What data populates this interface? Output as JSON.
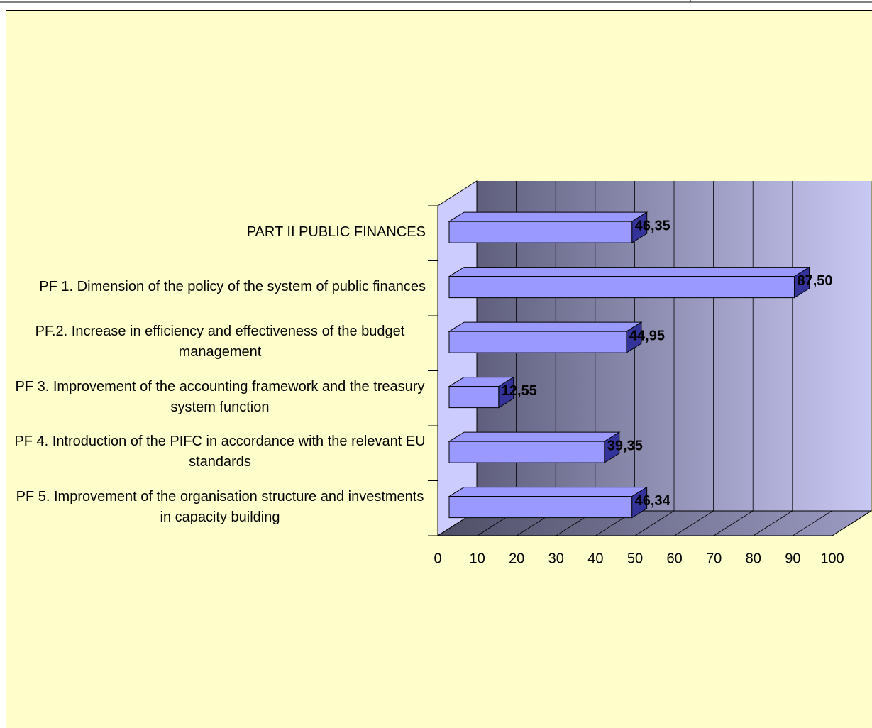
{
  "chart_data": {
    "type": "bar3d_horizontal",
    "categories": [
      "PART II PUBLIC FINANCES",
      "PF 1. Dimension of the policy of the system of public finances",
      "PF.2. Increase in efficiency and effectiveness of the budget management",
      "PF 3. Improvement of the accounting framework and the treasury system function",
      "PF 4. Introduction of the PIFC in accordance with the relevant EU standards",
      "PF 5. Improvement of the organisation structure and investments in capacity building"
    ],
    "values": [
      46.35,
      87.5,
      44.95,
      12.55,
      39.35,
      46.34
    ],
    "value_labels": [
      "46,35",
      "87,50",
      "44,95",
      "12,55",
      "39,35",
      "46,34"
    ],
    "color": "#9999ff",
    "xlim": [
      0,
      100
    ],
    "xticks": [
      0,
      10,
      20,
      30,
      40,
      50,
      60,
      70,
      80,
      90,
      100
    ],
    "grid": true
  }
}
